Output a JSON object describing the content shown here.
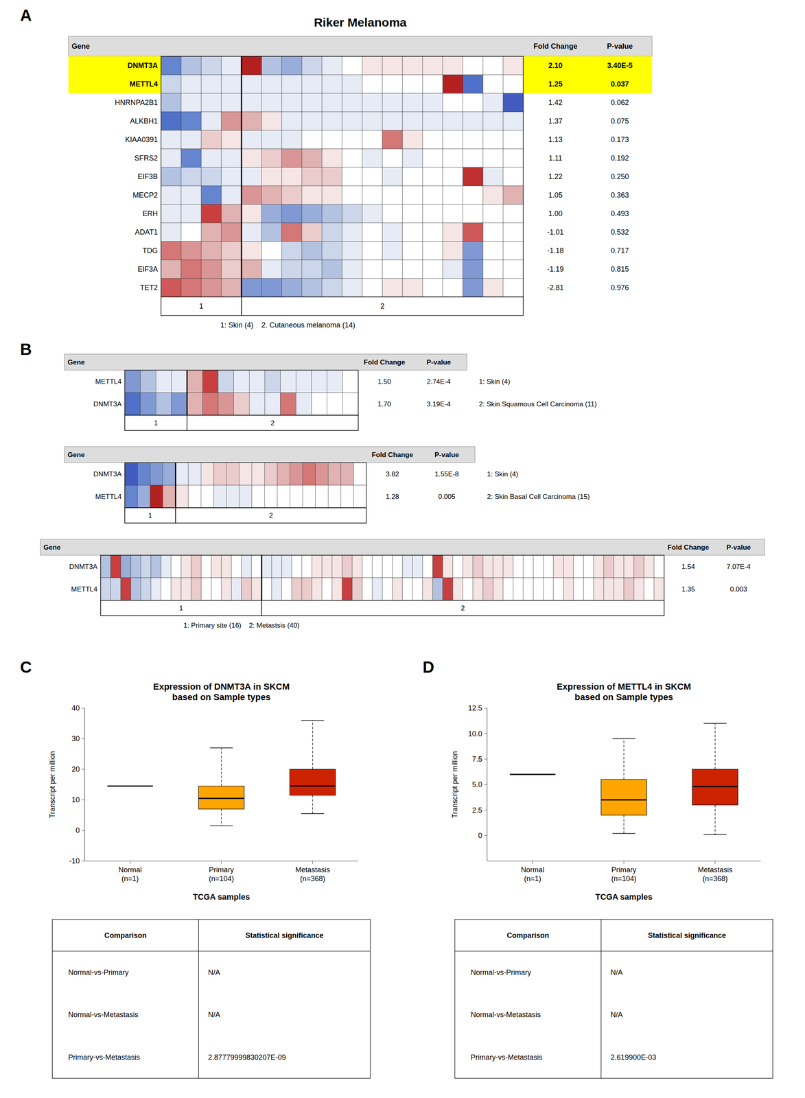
{
  "chart_data": [
    {
      "type": "heatmap",
      "panel": "A",
      "title": "Riker Melanoma",
      "columns": [
        "Gene",
        "Fold Change",
        "P-value"
      ],
      "genes": [
        "DNMT3A",
        "METTL4",
        "HNRNPA2B1",
        "ALKBH1",
        "KIAA0391",
        "SFRS2",
        "EIF3B",
        "MECP2",
        "ERH",
        "ADAT1",
        "TDG",
        "EIF3A",
        "TET2"
      ],
      "fold_changes": [
        "2.10",
        "1.25",
        "1.42",
        "1.37",
        "1.13",
        "1.11",
        "1.22",
        "1.05",
        "1.00",
        "-1.01",
        "-1.18",
        "-1.19",
        "-2.81"
      ],
      "pvalues": [
        "3.40E-5",
        "0.037",
        "0.062",
        "0.075",
        "0.173",
        "0.192",
        "0.250",
        "0.363",
        "0.493",
        "0.532",
        "0.717",
        "0.815",
        "0.976"
      ],
      "highlighted": [
        0,
        1
      ],
      "highlight_color": "#FFFF00",
      "groups": [
        {
          "label": "1",
          "size": 4
        },
        {
          "label": "2",
          "size": 14
        }
      ],
      "captions": [
        "1: Skin (4)    2. Cutaneous melanoma (14)"
      ],
      "color_range": [
        -1,
        1
      ],
      "colorscale": [
        "#2233AA",
        "#5577CC",
        "#AABBDD",
        "#FFFFFF",
        "#DDAAAA",
        "#CC4444",
        "#AA1111"
      ],
      "cells": [
        [
          -0.6,
          -0.3,
          -0.2,
          -0.1,
          0.9,
          -0.3,
          -0.4,
          -0.2,
          -0.1,
          0.0,
          0.1,
          0.1,
          0.1,
          0.1,
          0.1,
          0.0,
          0.0,
          0.1
        ],
        [
          -0.2,
          -0.1,
          -0.1,
          -0.1,
          -0.1,
          -0.1,
          -0.1,
          -0.1,
          -0.1,
          -0.1,
          0.0,
          0.0,
          0.0,
          0.0,
          0.9,
          -0.7,
          0.0,
          0.0
        ],
        [
          -0.3,
          -0.1,
          -0.1,
          -0.1,
          -0.1,
          -0.1,
          -0.1,
          -0.1,
          -0.1,
          -0.1,
          -0.1,
          -0.1,
          -0.1,
          -0.1,
          0.0,
          0.0,
          -0.1,
          -0.8
        ],
        [
          -0.7,
          -0.6,
          -0.1,
          0.4,
          0.3,
          0.1,
          -0.1,
          -0.1,
          -0.1,
          -0.1,
          -0.1,
          -0.1,
          -0.1,
          -0.1,
          -0.1,
          -0.1,
          -0.1,
          -0.1
        ],
        [
          -0.1,
          -0.1,
          0.2,
          0.1,
          -0.1,
          -0.1,
          -0.1,
          0.0,
          0.0,
          0.0,
          0.0,
          0.5,
          0.1,
          0.0,
          0.0,
          0.0,
          0.0,
          0.0
        ],
        [
          -0.1,
          -0.6,
          -0.1,
          -0.1,
          0.1,
          0.2,
          0.4,
          0.3,
          0.1,
          0.0,
          -0.1,
          0.0,
          -0.1,
          0.0,
          0.0,
          0.0,
          0.0,
          0.0
        ],
        [
          -0.3,
          -0.2,
          -0.2,
          -0.1,
          -0.1,
          0.1,
          0.1,
          0.2,
          0.2,
          0.0,
          0.0,
          -0.1,
          0.0,
          0.0,
          0.0,
          0.8,
          -0.1,
          0.0
        ],
        [
          -0.1,
          -0.1,
          -0.6,
          -0.1,
          0.4,
          0.3,
          0.2,
          0.1,
          0.1,
          0.0,
          0.0,
          0.0,
          0.0,
          0.0,
          0.0,
          0.0,
          0.1,
          0.3
        ],
        [
          -0.1,
          -0.1,
          0.7,
          0.3,
          0.1,
          -0.4,
          -0.5,
          -0.4,
          -0.3,
          -0.2,
          -0.1,
          0.0,
          0.0,
          0.0,
          0.0,
          0.0,
          0.0,
          0.0
        ],
        [
          -0.1,
          0.0,
          0.3,
          0.4,
          -0.1,
          -0.3,
          0.5,
          0.2,
          -0.2,
          -0.1,
          0.0,
          -0.1,
          0.0,
          0.0,
          0.1,
          0.6,
          0.0,
          0.0
        ],
        [
          0.5,
          0.4,
          0.3,
          0.2,
          0.1,
          0.0,
          -0.2,
          -0.3,
          -0.2,
          -0.1,
          0.0,
          -0.1,
          0.0,
          0.0,
          0.1,
          -0.5,
          0.0,
          0.0
        ],
        [
          0.3,
          0.5,
          0.4,
          0.2,
          0.3,
          -0.1,
          -0.2,
          -0.2,
          -0.3,
          -0.1,
          0.0,
          0.0,
          0.0,
          0.0,
          -0.1,
          -0.5,
          0.0,
          0.0
        ],
        [
          0.6,
          0.5,
          0.4,
          0.3,
          -0.5,
          -0.5,
          -0.4,
          -0.3,
          -0.2,
          -0.1,
          0.0,
          0.1,
          0.1,
          0.0,
          0.0,
          -0.5,
          0.1,
          0.0
        ]
      ]
    },
    {
      "type": "heatmap",
      "panel": "B",
      "columns": [
        "Gene",
        "Fold Change",
        "P-value"
      ],
      "genes": [
        "METTL4",
        "DNMT3A"
      ],
      "fold_changes": [
        "1.50",
        "1.70"
      ],
      "pvalues": [
        "2.74E-4",
        "3.19E-4"
      ],
      "groups": [
        {
          "label": "1",
          "size": 4
        },
        {
          "label": "2",
          "size": 11
        }
      ],
      "captions": [
        "1: Skin (4)",
        "2: Skin Squamous Cell Carcinoma (11)"
      ],
      "color_range": [
        -1,
        1
      ],
      "colorscale": [
        "#2233AA",
        "#5577CC",
        "#AABBDD",
        "#FFFFFF",
        "#DDAAAA",
        "#CC4444",
        "#AA1111"
      ],
      "cells": [
        [
          -0.5,
          -0.3,
          -0.1,
          -0.1,
          0.3,
          0.7,
          -0.2,
          -0.1,
          -0.1,
          -0.2,
          -0.1,
          -0.1,
          -0.1,
          -0.1,
          0.0
        ],
        [
          -0.7,
          -0.5,
          -0.3,
          -0.5,
          0.3,
          0.5,
          0.4,
          0.2,
          -0.1,
          -0.1,
          0.5,
          -0.1,
          0.0,
          0.0,
          0.0
        ]
      ]
    },
    {
      "type": "heatmap",
      "columns": [
        "Gene",
        "Fold Change",
        "P-value"
      ],
      "genes": [
        "DNMT3A",
        "METTL4"
      ],
      "fold_changes": [
        "3.82",
        "1.28"
      ],
      "pvalues": [
        "1.55E-8",
        "0.005"
      ],
      "groups": [
        {
          "label": "1",
          "size": 4
        },
        {
          "label": "2",
          "size": 15
        }
      ],
      "captions": [
        "1: Skin (4)",
        "2: Skin Basal Cell Carcinoma (15)"
      ],
      "color_range": [
        -1,
        1
      ],
      "colorscale": [
        "#2233AA",
        "#5577CC",
        "#AABBDD",
        "#FFFFFF",
        "#DDAAAA",
        "#CC4444",
        "#AA1111"
      ],
      "cells": [
        [
          -0.8,
          -0.6,
          -0.5,
          -0.4,
          -0.1,
          -0.1,
          0.1,
          0.2,
          0.2,
          0.1,
          0.1,
          0.2,
          0.3,
          0.4,
          0.5,
          0.4,
          0.3,
          0.3,
          0.0
        ],
        [
          -0.6,
          -0.4,
          0.9,
          0.3,
          0.1,
          0.0,
          0.0,
          -0.1,
          -0.1,
          -0.1,
          0.0,
          0.0,
          0.0,
          0.0,
          0.0,
          0.0,
          0.0,
          0.0,
          0.0
        ]
      ]
    },
    {
      "type": "heatmap",
      "columns": [
        "Gene",
        "Fold Change",
        "P-value"
      ],
      "genes": [
        "DNMT3A",
        "METTL4"
      ],
      "fold_changes": [
        "1.54",
        "1.35"
      ],
      "pvalues": [
        "7.07E-4",
        "0.003"
      ],
      "groups": [
        {
          "label": "1",
          "size": 16
        },
        {
          "label": "2",
          "size": 40
        }
      ],
      "captions": [
        "1: Primary site (16)    2: Metastsis (40)"
      ],
      "color_range": [
        -1,
        1
      ],
      "colorscale": [
        "#2233AA",
        "#5577CC",
        "#AABBDD",
        "#FFFFFF",
        "#DDAAAA",
        "#CC4444",
        "#AA1111"
      ],
      "cells": [
        [
          -0.3,
          0.7,
          -0.4,
          -0.3,
          -0.2,
          -0.3,
          -0.1,
          0.0,
          0.1,
          0.2,
          0.0,
          0.1,
          0.1,
          0.0,
          -0.1,
          0.0,
          -0.1,
          -0.1,
          -0.1,
          0.0,
          0.0,
          0.1,
          0.1,
          0.1,
          0.2,
          0.1,
          0.0,
          0.0,
          0.0,
          0.0,
          -0.1,
          -0.1,
          0.0,
          0.7,
          0.1,
          0.0,
          0.1,
          0.2,
          0.1,
          0.1,
          0.1,
          0.0,
          0.0,
          0.0,
          0.0,
          0.1,
          0.1,
          0.0,
          0.0,
          0.1,
          0.2,
          0.1,
          0.1,
          0.2,
          0.1,
          0.0
        ],
        [
          -0.2,
          -0.2,
          0.7,
          -0.3,
          -0.2,
          -0.1,
          0.0,
          0.1,
          0.1,
          0.2,
          0.0,
          0.0,
          0.1,
          -0.1,
          0.2,
          0.1,
          0.0,
          -0.1,
          0.0,
          0.2,
          0.2,
          0.1,
          0.0,
          0.1,
          0.7,
          0.2,
          0.0,
          -0.1,
          0.0,
          0.1,
          0.0,
          0.0,
          0.1,
          -0.3,
          0.7,
          0.1,
          0.0,
          0.1,
          0.2,
          0.1,
          0.0,
          0.0,
          0.0,
          0.0,
          0.0,
          0.0,
          0.1,
          0.0,
          0.0,
          0.1,
          0.1,
          0.1,
          0.2,
          0.1,
          0.0,
          0.1
        ]
      ]
    },
    {
      "type": "box",
      "panel": "C",
      "title": "Expression of DNMT3A in SKCM\nbased on Sample types",
      "xlabel": "TCGA samples",
      "ylabel": "Transcript per million",
      "categories": [
        "Normal\n(n=1)",
        "Primary\n(n=104)",
        "Metastasis\n(n=368)"
      ],
      "colors": [
        "#FFA500",
        "#FFA500",
        "#CC2200"
      ],
      "medians": [
        14.5,
        10.5,
        14.5
      ],
      "q1": [
        14.5,
        7.0,
        11.5
      ],
      "q3": [
        14.5,
        14.5,
        20.0
      ],
      "whisker_low": [
        14.5,
        1.5,
        5.5
      ],
      "whisker_high": [
        14.5,
        27.0,
        36.0
      ],
      "ylim": [
        -10,
        40
      ],
      "yticks": [
        -10,
        0,
        10,
        20,
        30,
        40
      ],
      "grid": false,
      "table": {
        "columns": [
          "Comparison",
          "Statistical significance"
        ],
        "rows": [
          [
            "Normal-vs-Primary",
            "N/A"
          ],
          [
            "Normal-vs-Metastasis",
            "N/A"
          ],
          [
            "Primary-vs-Metastasis",
            "2.87779999830207E-09"
          ]
        ]
      }
    },
    {
      "type": "box",
      "panel": "D",
      "title": "Expression of METTL4 in SKCM\nbased on Sample types",
      "xlabel": "TCGA samples",
      "ylabel": "Transcript per million",
      "categories": [
        "Normal\n(n=1)",
        "Primary\n(n=104)",
        "Metastasis\n(n=368)"
      ],
      "colors": [
        "#FFA500",
        "#FFA500",
        "#CC2200"
      ],
      "medians": [
        6.0,
        3.5,
        4.8
      ],
      "q1": [
        6.0,
        2.0,
        3.0
      ],
      "q3": [
        6.0,
        5.5,
        6.5
      ],
      "whisker_low": [
        6.0,
        0.2,
        0.1
      ],
      "whisker_high": [
        6.0,
        9.5,
        11.0
      ],
      "ylim": [
        -2.5,
        12.5
      ],
      "yticks": [
        0,
        2.5,
        {
          "value": 5,
          "label": "5.0"
        },
        7.5,
        {
          "value": 10,
          "label": "10.0"
        },
        12.5
      ],
      "grid": false,
      "table": {
        "columns": [
          "Comparison",
          "Statistical significance"
        ],
        "rows": [
          [
            "Normal-vs-Primary",
            "N/A"
          ],
          [
            "Normal-vs-Metastasis",
            "N/A"
          ],
          [
            "Primary-vs-Metastasis",
            "2.619900E-03"
          ]
        ]
      }
    }
  ]
}
